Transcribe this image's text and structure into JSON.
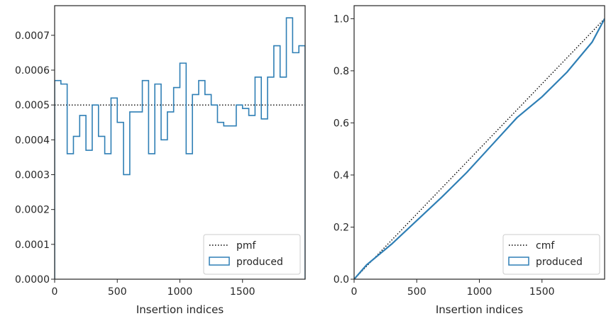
{
  "chart_data": [
    {
      "type": "histogram",
      "xlabel": "Insertion indices",
      "xlim": [
        0,
        2000
      ],
      "ylim": [
        0,
        0.000785
      ],
      "xticks": [
        0,
        500,
        1000,
        1500
      ],
      "xtick_labels": [
        "0",
        "500",
        "1000",
        "1500"
      ],
      "yticks": [
        0,
        0.0001,
        0.0002,
        0.0003,
        0.0004,
        0.0005,
        0.0006,
        0.0007
      ],
      "ytick_labels": [
        "0.0000",
        "0.0001",
        "0.0002",
        "0.0003",
        "0.0004",
        "0.0005",
        "0.0006",
        "0.0007"
      ],
      "legend_position": "lower-right",
      "series": [
        {
          "name": "pmf",
          "style": "dotted",
          "color": "#000000",
          "x": [
            0,
            2000
          ],
          "values": [
            0.0005,
            0.0005
          ]
        },
        {
          "name": "produced",
          "style": "step",
          "color": "#2f7fb5",
          "bin_width": 50,
          "bin_edges": [
            0,
            50,
            100,
            150,
            200,
            250,
            300,
            350,
            400,
            450,
            500,
            550,
            600,
            650,
            700,
            750,
            800,
            850,
            900,
            950,
            1000,
            1050,
            1100,
            1150,
            1200,
            1250,
            1300,
            1350,
            1400,
            1450,
            1500,
            1550,
            1600,
            1650,
            1700,
            1750,
            1800,
            1850,
            1900,
            1950,
            2000
          ],
          "values": [
            0.00057,
            0.00056,
            0.00036,
            0.00041,
            0.00047,
            0.00037,
            0.0005,
            0.00041,
            0.00036,
            0.00052,
            0.00045,
            0.0003,
            0.00048,
            0.00048,
            0.00057,
            0.00036,
            0.00056,
            0.0004,
            0.00048,
            0.00055,
            0.00062,
            0.00036,
            0.00053,
            0.00057,
            0.00053,
            0.0005,
            0.00045,
            0.00044,
            0.00044,
            0.0005,
            0.00049,
            0.00047,
            0.00058,
            0.00046,
            0.00058,
            0.00067,
            0.00058,
            0.00075,
            0.00065,
            0.00067
          ]
        }
      ]
    },
    {
      "type": "line",
      "xlabel": "Insertion indices",
      "xlim": [
        0,
        2000
      ],
      "ylim": [
        0,
        1.05
      ],
      "xticks": [
        0,
        500,
        1000,
        1500
      ],
      "xtick_labels": [
        "0",
        "500",
        "1000",
        "1500"
      ],
      "yticks": [
        0,
        0.2,
        0.4,
        0.6,
        0.8,
        1.0
      ],
      "ytick_labels": [
        "0.0",
        "0.2",
        "0.4",
        "0.6",
        "0.8",
        "1.0"
      ],
      "legend_position": "lower-right",
      "series": [
        {
          "name": "cmf",
          "style": "dotted",
          "color": "#000000",
          "x": [
            0,
            2000
          ],
          "values": [
            0,
            1.0
          ]
        },
        {
          "name": "produced",
          "style": "step",
          "color": "#2f7fb5",
          "x": [
            0,
            100,
            300,
            500,
            700,
            900,
            1100,
            1300,
            1500,
            1700,
            1900,
            2000
          ],
          "values": [
            0,
            0.055,
            0.135,
            0.225,
            0.315,
            0.41,
            0.515,
            0.62,
            0.7,
            0.795,
            0.91,
            1.0
          ]
        }
      ]
    }
  ]
}
